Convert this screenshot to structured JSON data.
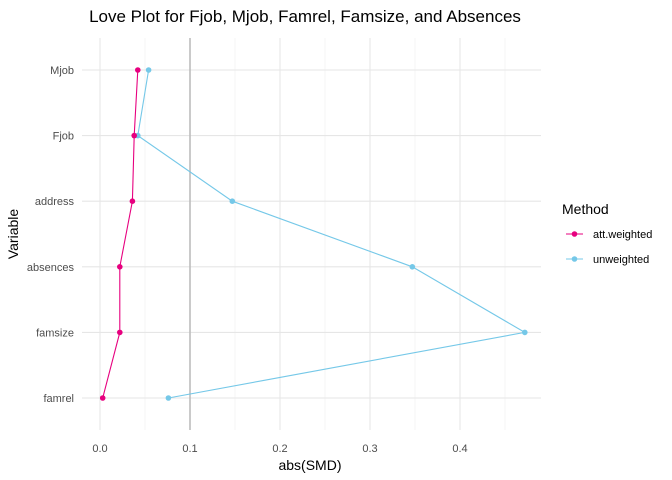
{
  "chart_data": {
    "type": "line",
    "title": "Love Plot for Fjob, Mjob, Famrel, Famsize, and Absences",
    "xlabel": "abs(SMD)",
    "ylabel": "Variable",
    "xlim": [
      -0.02,
      0.49
    ],
    "x_ticks": [
      0.0,
      0.1,
      0.2,
      0.3,
      0.4
    ],
    "x_tick_labels": [
      "0.0",
      "0.1",
      "0.2",
      "0.3",
      "0.4"
    ],
    "threshold": 0.1,
    "threshold_color": "#bdbdbd",
    "categories": [
      "Mjob",
      "Fjob",
      "address",
      "absences",
      "famsize",
      "famrel"
    ],
    "grid": true,
    "legend": {
      "title": "Method",
      "placement": "right"
    },
    "series": [
      {
        "name": "att.weighted",
        "color": "#e7007f",
        "values": [
          0.042,
          0.038,
          0.036,
          0.022,
          0.022,
          0.003
        ]
      },
      {
        "name": "unweighted",
        "color": "#75c8e8",
        "values": [
          0.054,
          0.042,
          0.147,
          0.347,
          0.472,
          0.076
        ]
      }
    ]
  }
}
